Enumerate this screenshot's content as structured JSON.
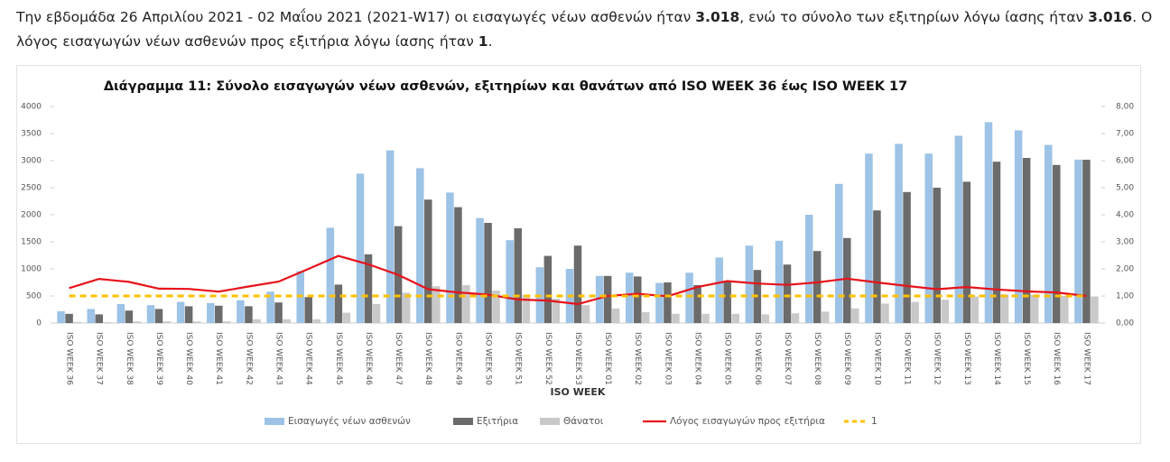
{
  "intro": [
    "Την εβδομάδα 26 Απριλίου 2021 - 02 Μαΐου 2021 (2021-W17) οι εισαγωγές νέων ασθενών ήταν ",
    "3.018",
    ", ενώ το σύνολο των εξιτηρίων λόγω ίασης ήταν ",
    "3.016",
    ". Ο λόγος εισαγωγών νέων ασθενών προς εξιτήρια λόγω ίασης ήταν ",
    "1",
    "."
  ],
  "chart_data": {
    "type": "bar",
    "title": "Διάγραμμα 11: Σύνολο εισαγωγών νέων ασθενών, εξιτηρίων και θανάτων από ISO WEEK 36 έως ISO WEEK 17",
    "x_label": "ISO WEEK",
    "categories": [
      "ISO WEEK 36",
      "ISO WEEK 37",
      "ISO WEEK 38",
      "ISO WEEK 39",
      "ISO WEEK 40",
      "ISO WEEK 41",
      "ISO WEEK 42",
      "ISO WEEK 43",
      "ISO WEEK 44",
      "ISO WEEK 45",
      "ISO WEEK 46",
      "ISO WEEK 47",
      "ISO WEEK 48",
      "ISO WEEK 49",
      "ISO WEEK 50",
      "ISO WEEK 51",
      "ISO WEEK 52",
      "ISO WEEK 53",
      "ISO WEEK 01",
      "ISO WEEK 02",
      "ISO WEEK 03",
      "ISO WEEK 04",
      "ISO WEEK 05",
      "ISO WEEK 06",
      "ISO WEEK 07",
      "ISO WEEK 08",
      "ISO WEEK 09",
      "ISO WEEK 10",
      "ISO WEEK 11",
      "ISO WEEK 12",
      "ISO WEEK 13",
      "ISO WEEK 14",
      "ISO WEEK 15",
      "ISO WEEK 16",
      "ISO WEEK 17"
    ],
    "series": [
      {
        "name": "Εισαγωγές νέων ασθενών",
        "type": "bar",
        "color": "#9dc3e6",
        "values": [
          220,
          260,
          350,
          330,
          390,
          370,
          420,
          580,
          960,
          1760,
          2760,
          3190,
          2860,
          2410,
          1940,
          1530,
          1030,
          1000,
          870,
          930,
          740,
          930,
          1210,
          1430,
          1520,
          2000,
          2570,
          3130,
          3310,
          3130,
          3460,
          3710,
          3560,
          3290,
          3018
        ]
      },
      {
        "name": "Εξιτήρια",
        "type": "bar",
        "color": "#6b6b6b",
        "values": [
          170,
          160,
          230,
          260,
          310,
          320,
          310,
          380,
          480,
          710,
          1270,
          1790,
          2280,
          2140,
          1850,
          1750,
          1240,
          1430,
          870,
          860,
          750,
          700,
          780,
          980,
          1080,
          1330,
          1570,
          2080,
          2420,
          2500,
          2610,
          2980,
          3050,
          2920,
          3016
        ]
      },
      {
        "name": "Θάνατοι",
        "type": "bar",
        "color": "#c9c9c9",
        "values": [
          20,
          15,
          30,
          30,
          30,
          30,
          70,
          70,
          70,
          190,
          350,
          560,
          680,
          700,
          600,
          520,
          450,
          330,
          270,
          200,
          170,
          170,
          170,
          160,
          180,
          210,
          270,
          360,
          390,
          430,
          490,
          530,
          520,
          500,
          490
        ]
      },
      {
        "name": "Λόγος εισαγωγών προς εξιτήρια",
        "type": "line",
        "axis": "y2",
        "color": "#e8121a",
        "values": [
          1.29,
          1.63,
          1.52,
          1.27,
          1.26,
          1.16,
          1.35,
          1.53,
          2.0,
          2.48,
          2.17,
          1.78,
          1.25,
          1.13,
          1.05,
          0.87,
          0.83,
          0.7,
          1.0,
          1.08,
          0.99,
          1.33,
          1.55,
          1.46,
          1.41,
          1.5,
          1.64,
          1.5,
          1.37,
          1.25,
          1.33,
          1.24,
          1.17,
          1.13,
          1.0
        ]
      },
      {
        "name": "1",
        "type": "line",
        "axis": "y2",
        "dashed": true,
        "color": "#ffc000",
        "values": [
          1,
          1,
          1,
          1,
          1,
          1,
          1,
          1,
          1,
          1,
          1,
          1,
          1,
          1,
          1,
          1,
          1,
          1,
          1,
          1,
          1,
          1,
          1,
          1,
          1,
          1,
          1,
          1,
          1,
          1,
          1,
          1,
          1,
          1,
          1
        ]
      }
    ],
    "ylim": [
      0,
      4000
    ],
    "yticks": [
      0,
      500,
      1000,
      1500,
      2000,
      2500,
      3000,
      3500,
      4000
    ],
    "y2lim": [
      0,
      8
    ],
    "y2ticks": [
      {
        "value": 0,
        "label": "0,00"
      },
      {
        "value": 1,
        "label": "1,00"
      },
      {
        "value": 2,
        "label": "2,00"
      },
      {
        "value": 3,
        "label": "3,00"
      },
      {
        "value": 4,
        "label": "4,00"
      },
      {
        "value": 5,
        "label": "5,00"
      },
      {
        "value": 6,
        "label": "6,00"
      },
      {
        "value": 7,
        "label": "7,00"
      },
      {
        "value": 8,
        "label": "8,00"
      }
    ],
    "grid": false,
    "legend": "bottom"
  }
}
